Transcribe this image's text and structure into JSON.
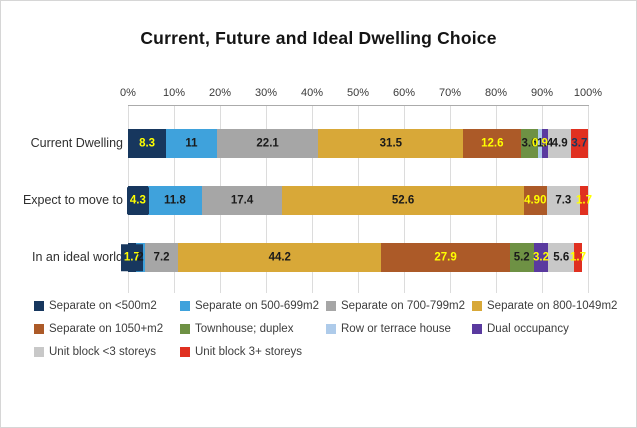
{
  "chart_data": {
    "type": "bar",
    "stacked": true,
    "orientation": "horizontal",
    "title": "Current, Future and Ideal Dwelling Choice",
    "categories": [
      "Current Dwelling",
      "Expect to move to",
      "In an ideal world"
    ],
    "x_axis": {
      "min": 0,
      "max": 100,
      "ticks": [
        "0%",
        "10%",
        "20%",
        "30%",
        "40%",
        "50%",
        "60%",
        "70%",
        "80%",
        "90%",
        "100%"
      ],
      "grid": true,
      "position": "top"
    },
    "legend_position": "bottom",
    "series": [
      {
        "name": "Separate on <500m2",
        "color": "#17375E",
        "values": [
          8.3,
          4.3,
          1.7
        ],
        "labels": [
          "8.3",
          "4.3",
          "1.7"
        ],
        "label_colors": [
          "#FFFF00",
          "#FFFF00",
          "#FFFF00"
        ],
        "label_box": true
      },
      {
        "name": "Separate on 500-699m2",
        "color": "#3FA2DC",
        "values": [
          11,
          11.8,
          2
        ],
        "labels": [
          "11",
          "11.8",
          "2"
        ],
        "label_colors": [
          "#1a1a1a",
          "#1a1a1a",
          "#1a1a1a"
        ],
        "label_box": false
      },
      {
        "name": "Separate on 700-799m2",
        "color": "#A6A6A6",
        "values": [
          22.1,
          17.4,
          7.2
        ],
        "labels": [
          "22.1",
          "17.4",
          "7.2"
        ],
        "label_colors": [
          "#1a1a1a",
          "#1a1a1a",
          "#1a1a1a"
        ],
        "label_box": false
      },
      {
        "name": "Separate on 800-1049m2",
        "color": "#D8A838",
        "values": [
          31.5,
          52.6,
          44.2
        ],
        "labels": [
          "31.5",
          "52.6",
          "44.2"
        ],
        "label_colors": [
          "#1a1a1a",
          "#1a1a1a",
          "#1a1a1a"
        ],
        "label_box": false
      },
      {
        "name": "Separate on 1050+m2",
        "color": "#AC5A28",
        "values": [
          12.6,
          4.9,
          27.9
        ],
        "labels": [
          "12.6",
          "4.90",
          "27.9"
        ],
        "label_colors": [
          "#FFFF00",
          "#FFFF00",
          "#FFFF00"
        ],
        "label_box": false
      },
      {
        "name": "Townhouse; duplex",
        "color": "#6E9144",
        "values": [
          3.6,
          0,
          5.2
        ],
        "labels": [
          "3.6",
          "",
          "5.2"
        ],
        "label_colors": [
          "#1a1a1a",
          "",
          "#1a1a1a"
        ],
        "label_box": false
      },
      {
        "name": "Row or terrace house",
        "color": "#AECBEA",
        "values": [
          0.9,
          0,
          0
        ],
        "labels": [
          "0.9",
          "",
          ""
        ],
        "label_colors": [
          "#FFFF00",
          "",
          ""
        ],
        "label_box": false
      },
      {
        "name": "Dual occupancy",
        "color": "#5A3A9F",
        "values": [
          1.4,
          0,
          3.2
        ],
        "labels": [
          "1.4",
          "",
          "3.2"
        ],
        "label_colors": [
          "#1a1a1a",
          "",
          "#FFFF00"
        ],
        "label_box": false
      },
      {
        "name": "Unit block <3 storeys",
        "color": "#C8C8C8",
        "values": [
          4.9,
          7.3,
          5.6
        ],
        "labels": [
          "4.9",
          "7.3",
          "5.6"
        ],
        "label_colors": [
          "#1a1a1a",
          "#1a1a1a",
          "#1a1a1a"
        ],
        "label_box": false
      },
      {
        "name": "Unit block 3+ storeys",
        "color": "#E03020",
        "values": [
          3.7,
          1.7,
          1.7
        ],
        "labels": [
          "3.7",
          "1.7",
          "1.7"
        ],
        "label_colors": [
          "#17375E",
          "#FFFF00",
          "#FFFF00"
        ],
        "label_box": false
      }
    ]
  }
}
